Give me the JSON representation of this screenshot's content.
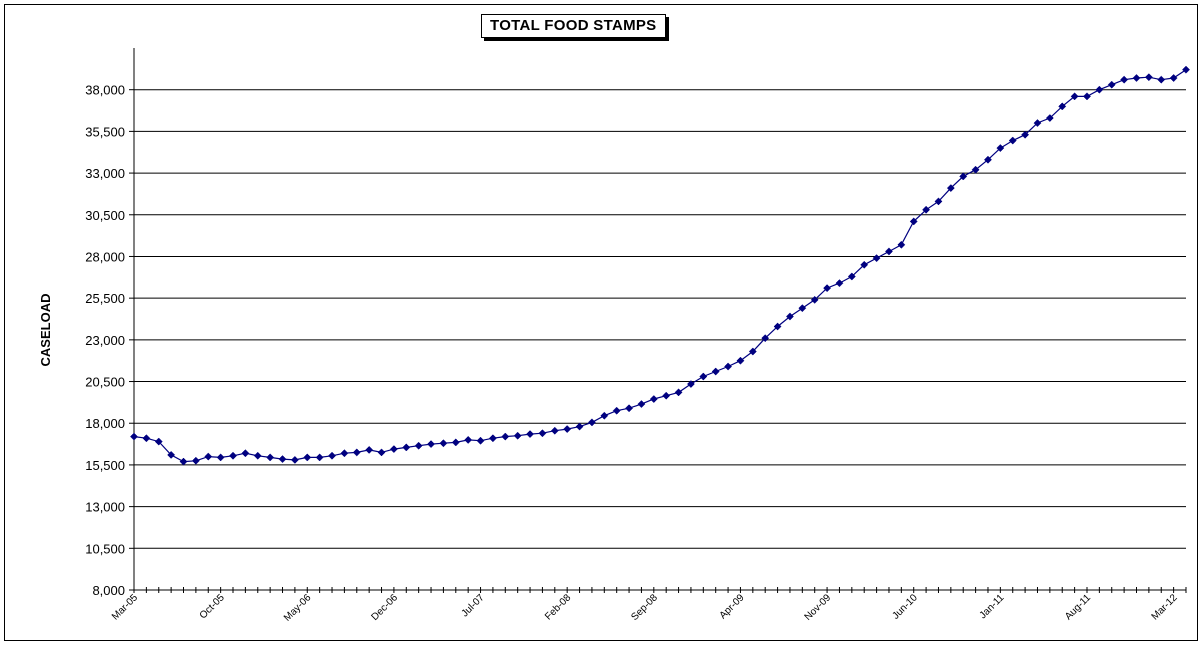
{
  "chart_data": {
    "type": "line",
    "title": "TOTAL FOOD STAMPS",
    "ylabel": "CASELOAD",
    "xlabel": "",
    "ylim": [
      8000,
      40500
    ],
    "yticks": [
      8000,
      10500,
      13000,
      15500,
      18000,
      20500,
      23000,
      25500,
      28000,
      30500,
      33000,
      35500,
      38000
    ],
    "ytick_labels": [
      "8,000",
      "10,500",
      "13,000",
      "15,500",
      "18,000",
      "20,500",
      "23,000",
      "25,500",
      "28,000",
      "30,500",
      "33,000",
      "35,500",
      "38,000"
    ],
    "x_labels": [
      "Mar-05",
      "Oct-05",
      "May-06",
      "Dec-06",
      "Jul-07",
      "Feb-08",
      "Sep-08",
      "Apr-09",
      "Nov-09",
      "Jun-10",
      "Jan-11",
      "Aug-11",
      "Mar-12"
    ],
    "x_label_every": 7,
    "start_month": "Mar-05",
    "grid": "horizontal",
    "legend": "none",
    "series_color": "#000080",
    "values": [
      17200,
      17100,
      16900,
      16100,
      15700,
      15750,
      16000,
      15950,
      16050,
      16200,
      16050,
      15950,
      15850,
      15800,
      15950,
      15950,
      16050,
      16200,
      16250,
      16400,
      16250,
      16450,
      16550,
      16650,
      16750,
      16800,
      16850,
      17000,
      16950,
      17100,
      17200,
      17250,
      17350,
      17400,
      17550,
      17650,
      17800,
      18050,
      18450,
      18750,
      18900,
      19150,
      19450,
      19650,
      19850,
      20350,
      20800,
      21100,
      21400,
      21750,
      22300,
      23100,
      23800,
      24400,
      24900,
      25400,
      26100,
      26400,
      26800,
      27500,
      27900,
      28300,
      28700,
      30100,
      30800,
      31300,
      32100,
      32800,
      33200,
      33800,
      34500,
      34950,
      35300,
      36000,
      36300,
      37000,
      37600,
      37600,
      38000,
      38300,
      38600,
      38700,
      38750,
      38600,
      38700,
      39200
    ]
  }
}
